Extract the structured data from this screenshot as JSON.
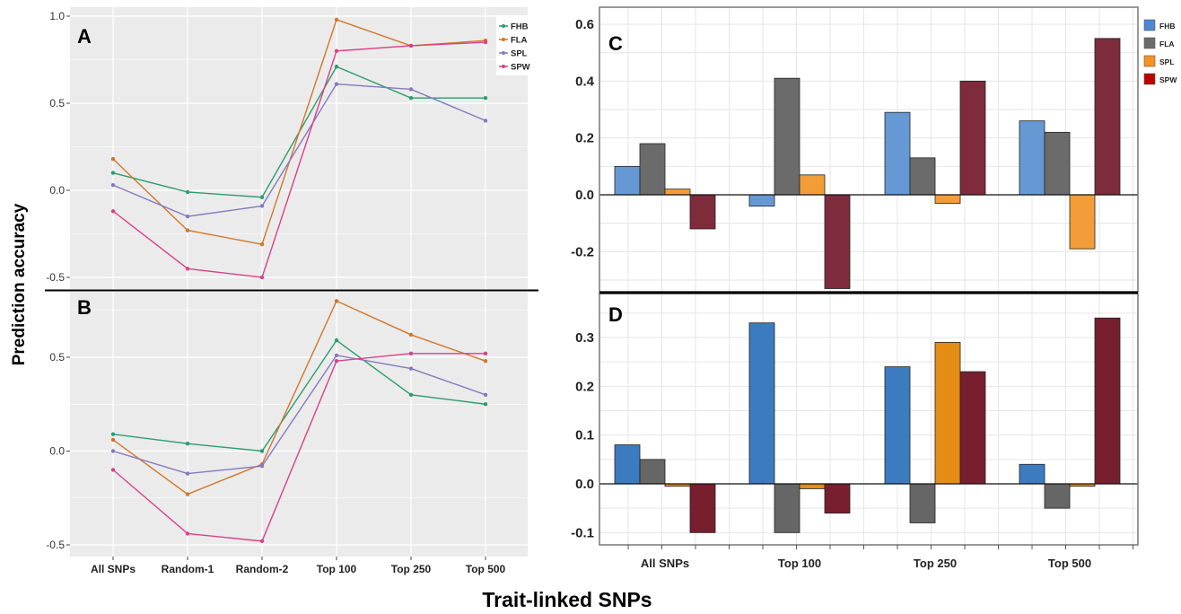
{
  "figure": {
    "ylabel": "Prediction accuracy",
    "xlabel": "Trait-linked SNPs"
  },
  "chart_data": [
    {
      "panel": "A",
      "type": "line",
      "categories": [
        "All SNPs",
        "Random-1",
        "Random-2",
        "Top 100",
        "Top 250",
        "Top 500"
      ],
      "series": [
        {
          "name": "FHB",
          "color": "#2a9d6e",
          "values": [
            0.1,
            -0.01,
            -0.04,
            0.71,
            0.53,
            0.53
          ]
        },
        {
          "name": "FLA",
          "color": "#d2762a",
          "values": [
            0.18,
            -0.23,
            -0.31,
            0.98,
            0.83,
            0.86
          ]
        },
        {
          "name": "SPL",
          "color": "#8579bf",
          "values": [
            0.03,
            -0.15,
            -0.09,
            0.61,
            0.58,
            0.4
          ]
        },
        {
          "name": "SPW",
          "color": "#d8418a",
          "values": [
            -0.12,
            -0.45,
            -0.5,
            0.8,
            0.83,
            0.85
          ]
        }
      ],
      "yticks": [
        -0.5,
        0.0,
        0.5,
        1.0
      ],
      "ytick_labels": [
        "-0.5",
        "0.0",
        "0.5",
        "1.0"
      ],
      "ylim": [
        -0.56,
        1.02
      ],
      "show_xticklabels": false,
      "legend": "top-right",
      "grid": true
    },
    {
      "panel": "B",
      "type": "line",
      "categories": [
        "All SNPs",
        "Random-1",
        "Random-2",
        "Top 100",
        "Top 250",
        "Top 500"
      ],
      "series": [
        {
          "name": "FHB",
          "color": "#2a9d6e",
          "values": [
            0.09,
            0.04,
            0.0,
            0.59,
            0.3,
            0.25
          ]
        },
        {
          "name": "FLA",
          "color": "#d2762a",
          "values": [
            0.06,
            -0.23,
            -0.07,
            0.8,
            0.62,
            0.48
          ]
        },
        {
          "name": "SPL",
          "color": "#8579bf",
          "values": [
            0.0,
            -0.12,
            -0.08,
            0.51,
            0.44,
            0.3
          ]
        },
        {
          "name": "SPW",
          "color": "#d8418a",
          "values": [
            -0.1,
            -0.44,
            -0.48,
            0.48,
            0.52,
            0.52
          ]
        }
      ],
      "yticks": [
        -0.5,
        0.0,
        0.5
      ],
      "ytick_labels": [
        "-0.5",
        "0.0",
        "0.5"
      ],
      "ylim": [
        -0.54,
        0.85
      ],
      "show_xticklabels": true,
      "grid": true
    },
    {
      "panel": "C",
      "type": "bar",
      "categories": [
        "All SNPs",
        "Top 100",
        "Top 250",
        "Top 500"
      ],
      "series": [
        {
          "name": "FHB",
          "color": "#6699d4",
          "values": [
            0.1,
            -0.04,
            0.29,
            0.26
          ]
        },
        {
          "name": "FLA",
          "color": "#6b6b6b",
          "values": [
            0.18,
            0.41,
            0.13,
            0.22
          ]
        },
        {
          "name": "SPL",
          "color": "#f29d38",
          "values": [
            0.02,
            0.07,
            -0.03,
            -0.19
          ]
        },
        {
          "name": "SPW",
          "color": "#7e2b3c",
          "values": [
            -0.12,
            -0.33,
            0.4,
            0.55
          ]
        }
      ],
      "legend_colors": [
        "#4f86d1",
        "#6b6b6b",
        "#f39324",
        "#c00000"
      ],
      "yticks": [
        -0.2,
        0.0,
        0.2,
        0.4,
        0.6
      ],
      "ytick_labels": [
        "-0.2",
        "0.0",
        "0.2",
        "0.4",
        "0.6"
      ],
      "ylim": [
        -0.34,
        0.62
      ],
      "legend": "top-right",
      "grid": true
    },
    {
      "panel": "D",
      "type": "bar",
      "categories": [
        "All SNPs",
        "Top 100",
        "Top 250",
        "Top 500"
      ],
      "series": [
        {
          "name": "FHB",
          "color": "#3d7bc0",
          "values": [
            0.08,
            0.33,
            0.24,
            0.04
          ]
        },
        {
          "name": "FLA",
          "color": "#666666",
          "values": [
            0.05,
            -0.1,
            -0.08,
            -0.05
          ]
        },
        {
          "name": "SPL",
          "color": "#e58c14",
          "values": [
            -0.005,
            -0.01,
            0.29,
            -0.005
          ]
        },
        {
          "name": "SPW",
          "color": "#771f2e",
          "values": [
            -0.1,
            -0.06,
            0.23,
            0.34
          ]
        }
      ],
      "yticks": [
        -0.1,
        0.0,
        0.1,
        0.2,
        0.3
      ],
      "ytick_labels": [
        "-0.1",
        "0.0",
        "0.1",
        "0.2",
        "0.3"
      ],
      "ylim": [
        -0.128,
        0.355
      ],
      "grid": true
    }
  ]
}
